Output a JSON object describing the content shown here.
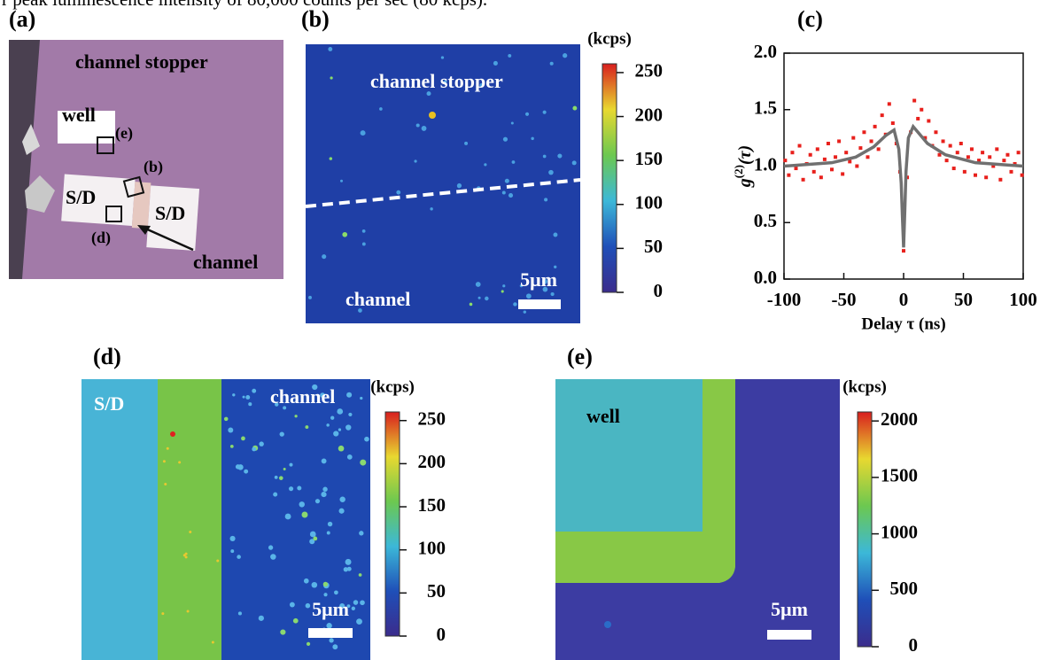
{
  "caption_fragment": "r peak luminescence intensity of 80,000 counts per sec (80 kcps).",
  "panels": {
    "a": {
      "label": "(a)",
      "channel_stopper": "channel stopper",
      "well": "well",
      "mark_e": "(e)",
      "mark_b": "(b)",
      "sd_left": "S/D",
      "sd_right": "S/D",
      "mark_d": "(d)",
      "channel": "channel"
    },
    "b": {
      "label": "(b)",
      "channel_stopper": "channel stopper",
      "channel": "channel",
      "scale": "5μm",
      "colorbar": {
        "unit": "(kcps)",
        "clim": [
          0,
          260
        ],
        "ticks": [
          0,
          50,
          100,
          150,
          200,
          250
        ]
      }
    },
    "d": {
      "label": "(d)",
      "sd": "S/D",
      "channel": "channel",
      "scale": "5μm",
      "colorbar": {
        "unit": "(kcps)",
        "clim": [
          0,
          260
        ],
        "ticks": [
          0,
          50,
          100,
          150,
          200,
          250
        ]
      }
    },
    "e": {
      "label": "(e)",
      "well": "well",
      "scale": "5μm",
      "colorbar": {
        "unit": "(kcps)",
        "clim": [
          0,
          2080
        ],
        "ticks": [
          0,
          500,
          1000,
          1500,
          2000
        ]
      }
    }
  },
  "chart_data": {
    "type": "scatter",
    "panel_label": "(c)",
    "xlabel": "Delay τ (ns)",
    "ylabel": {
      "base": "g",
      "sup": "(2)",
      "arg": "(τ)"
    },
    "xlim": [
      -100,
      100
    ],
    "xticks": [
      -100,
      -50,
      0,
      50,
      100
    ],
    "ylim": [
      0,
      2
    ],
    "yticks": [
      {
        "value": 0,
        "label": "0.0"
      },
      {
        "value": 0.5,
        "label": "0.5"
      },
      {
        "value": 1,
        "label": "1.0"
      },
      {
        "value": 1.5,
        "label": "1.5"
      },
      {
        "value": 2,
        "label": "2.0"
      }
    ],
    "series": [
      {
        "kind": "points",
        "color": "#e8201c",
        "x": [
          -99,
          -96,
          -93,
          -90,
          -87,
          -84,
          -81,
          -78,
          -75,
          -72,
          -69,
          -66,
          -63,
          -60,
          -57,
          -54,
          -51,
          -48,
          -45,
          -42,
          -39,
          -36,
          -33,
          -30,
          -27,
          -24,
          -21,
          -18,
          -15,
          -12,
          -9,
          -6,
          -3,
          0,
          3,
          6,
          9,
          12,
          15,
          18,
          21,
          24,
          27,
          30,
          33,
          36,
          39,
          42,
          45,
          48,
          51,
          54,
          57,
          60,
          63,
          66,
          69,
          72,
          75,
          78,
          81,
          84,
          87,
          90,
          93,
          96,
          99
        ],
        "values": [
          1.05,
          0.92,
          1.12,
          0.98,
          1.18,
          0.88,
          1.02,
          1.1,
          0.95,
          1.15,
          0.9,
          1.06,
          1.2,
          0.97,
          1.08,
          1.22,
          0.93,
          1.12,
          1.04,
          1.25,
          1.0,
          1.16,
          1.3,
          1.08,
          1.22,
          1.35,
          1.15,
          1.45,
          1.28,
          1.55,
          1.38,
          1.2,
          0.95,
          0.25,
          0.9,
          1.3,
          1.58,
          1.42,
          1.5,
          1.25,
          1.4,
          1.18,
          1.3,
          1.1,
          1.22,
          1.05,
          1.18,
          0.98,
          1.12,
          1.2,
          0.95,
          1.08,
          1.15,
          0.92,
          1.05,
          1.12,
          0.9,
          1.08,
          1.0,
          1.15,
          0.88,
          1.05,
          1.1,
          0.95,
          1.02,
          1.12,
          0.92
        ]
      },
      {
        "kind": "fit",
        "color": "#707070",
        "x": [
          -100,
          -60,
          -40,
          -25,
          -15,
          -8,
          -4,
          -2,
          -1,
          0,
          1,
          2,
          4,
          8,
          12,
          20,
          35,
          60,
          100
        ],
        "values": [
          1.0,
          1.03,
          1.08,
          1.17,
          1.27,
          1.32,
          1.15,
          0.85,
          0.55,
          0.28,
          0.6,
          0.95,
          1.25,
          1.35,
          1.3,
          1.2,
          1.1,
          1.03,
          1.0
        ]
      }
    ]
  }
}
